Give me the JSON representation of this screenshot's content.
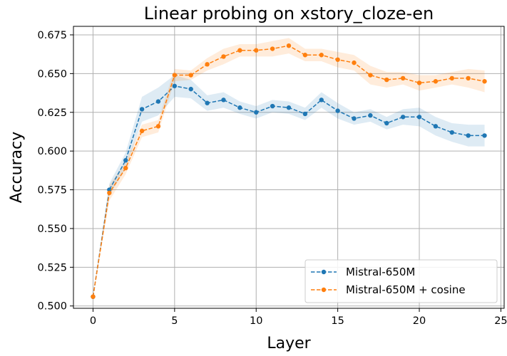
{
  "chart_data": {
    "type": "line",
    "title": "Linear probing on xstory_cloze-en",
    "xlabel": "Layer",
    "ylabel": "Accuracy",
    "xlim": [
      -1.2,
      25.2
    ],
    "ylim": [
      0.4985,
      0.6805
    ],
    "xticks": [
      0,
      5,
      10,
      15,
      20,
      25
    ],
    "yticks": [
      0.5,
      0.525,
      0.55,
      0.575,
      0.6,
      0.625,
      0.65,
      0.675
    ],
    "grid": true,
    "legend_position": "lower-right",
    "x": [
      0,
      1,
      2,
      3,
      4,
      5,
      6,
      7,
      8,
      9,
      10,
      11,
      12,
      13,
      14,
      15,
      16,
      17,
      18,
      19,
      20,
      21,
      22,
      23,
      24
    ],
    "series": [
      {
        "name": "Mistral-650M",
        "color": "#1f77b4",
        "values": [
          0.506,
          0.575,
          0.594,
          0.627,
          0.632,
          0.642,
          0.64,
          0.631,
          0.633,
          0.628,
          0.625,
          0.629,
          0.628,
          0.624,
          0.633,
          0.626,
          0.621,
          0.623,
          0.618,
          0.622,
          0.622,
          0.616,
          0.612,
          0.61,
          0.61
        ],
        "spread": [
          0.0,
          0.004,
          0.005,
          0.008,
          0.009,
          0.007,
          0.006,
          0.005,
          0.005,
          0.004,
          0.004,
          0.004,
          0.004,
          0.004,
          0.005,
          0.005,
          0.004,
          0.004,
          0.004,
          0.005,
          0.006,
          0.006,
          0.006,
          0.007,
          0.007
        ]
      },
      {
        "name": "Mistral-650M + cosine",
        "color": "#ff7f0e",
        "values": [
          0.506,
          0.573,
          0.589,
          0.613,
          0.616,
          0.649,
          0.649,
          0.656,
          0.661,
          0.665,
          0.665,
          0.666,
          0.668,
          0.662,
          0.662,
          0.659,
          0.657,
          0.649,
          0.646,
          0.647,
          0.644,
          0.645,
          0.647,
          0.647,
          0.645
        ],
        "spread": [
          0.0,
          0.005,
          0.004,
          0.004,
          0.004,
          0.004,
          0.003,
          0.004,
          0.005,
          0.004,
          0.004,
          0.005,
          0.005,
          0.004,
          0.004,
          0.005,
          0.005,
          0.006,
          0.005,
          0.004,
          0.005,
          0.004,
          0.004,
          0.006,
          0.007
        ]
      }
    ]
  }
}
